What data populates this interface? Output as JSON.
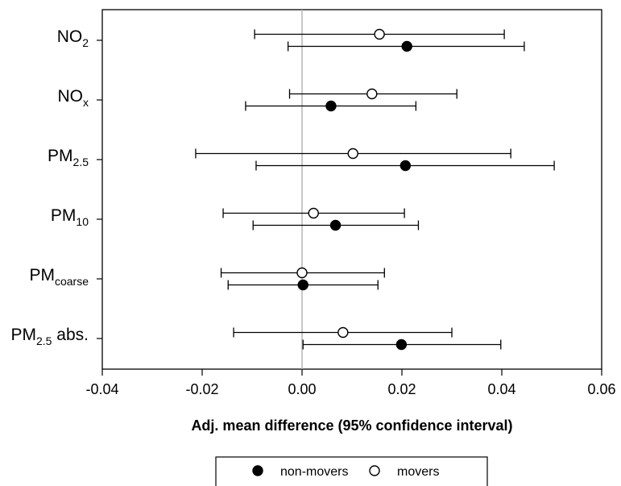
{
  "chart_data": {
    "type": "forest",
    "xlabel": "Adj. mean difference (95% confidence interval)",
    "xlim": [
      -0.04,
      0.06
    ],
    "xticks": [
      -0.04,
      -0.02,
      0.0,
      0.02,
      0.04,
      0.06
    ],
    "xtick_labels": [
      "-0.04",
      "-0.02",
      "0.00",
      "0.02",
      "0.04",
      "0.06"
    ],
    "reference_line": 0.0,
    "categories": [
      {
        "base": "NO",
        "sub": "2",
        "suffix": ""
      },
      {
        "base": "NO",
        "sub": "x",
        "suffix": ""
      },
      {
        "base": "PM",
        "sub": "2.5",
        "suffix": ""
      },
      {
        "base": "PM",
        "sub": "10",
        "suffix": ""
      },
      {
        "base": "PM",
        "sub": "coarse",
        "suffix": ""
      },
      {
        "base": "PM",
        "sub": "2.5",
        "suffix": " abs."
      }
    ],
    "series": [
      {
        "name": "movers",
        "marker": "open-circle",
        "estimate": [
          0.0155,
          0.014,
          0.0102,
          0.0023,
          0.0,
          0.0082
        ],
        "lower": [
          -0.0095,
          -0.0025,
          -0.0213,
          -0.0158,
          -0.0162,
          -0.0137
        ],
        "upper": [
          0.0405,
          0.031,
          0.0418,
          0.0205,
          0.0165,
          0.03
        ]
      },
      {
        "name": "non-movers",
        "marker": "filled-circle",
        "estimate": [
          0.021,
          0.0058,
          0.0207,
          0.0067,
          0.0002,
          0.0199
        ],
        "lower": [
          -0.0028,
          -0.0113,
          -0.0092,
          -0.0098,
          -0.0148,
          0.0002
        ],
        "upper": [
          0.0445,
          0.0228,
          0.0505,
          0.0233,
          0.0152,
          0.0398
        ]
      }
    ],
    "legend": {
      "position": "bottom",
      "entries": [
        "non-movers",
        "movers"
      ]
    }
  },
  "colors": {
    "filled": "#000000",
    "open": "#ffffff",
    "reference_line": "#b5b5b5",
    "frame": "#000000"
  }
}
